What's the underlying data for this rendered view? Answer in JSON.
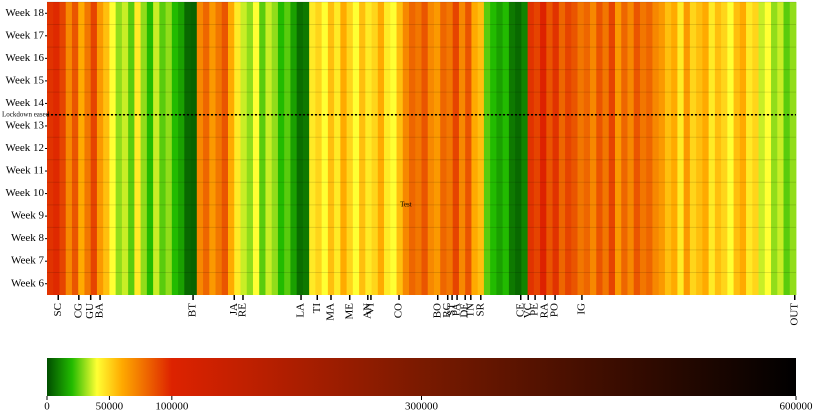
{
  "chart_data": {
    "type": "heatmap",
    "rows": [
      "Week 6",
      "Week 7",
      "Week 8",
      "Week 9",
      "Week 10",
      "Week 11",
      "Week 12",
      "Week 13",
      "Week 14",
      "Week 15",
      "Week 16",
      "Week 17",
      "Week 18"
    ],
    "values": [
      95000,
      98000,
      90000,
      70000,
      85000,
      60000,
      75000,
      90000,
      65000,
      55000,
      40000,
      30000,
      35000,
      25000,
      45000,
      30000,
      20000,
      35000,
      25000,
      30000,
      20000,
      15000,
      5000,
      4000,
      70000,
      80000,
      65000,
      75000,
      85000,
      60000,
      45000,
      35000,
      30000,
      40000,
      25000,
      35000,
      30000,
      20000,
      25000,
      15000,
      6000,
      8000,
      45000,
      50000,
      40000,
      55000,
      45000,
      60000,
      50000,
      40000,
      55000,
      45000,
      50000,
      60000,
      45000,
      40000,
      55000,
      70000,
      80000,
      75000,
      85000,
      70000,
      65000,
      80000,
      75000,
      90000,
      70000,
      85000,
      60000,
      55000,
      25000,
      20000,
      15000,
      20000,
      8000,
      5000,
      10000,
      95000,
      90000,
      100000,
      85000,
      95000,
      80000,
      90000,
      85000,
      75000,
      80000,
      70000,
      85000,
      75000,
      90000,
      65000,
      80000,
      70000,
      85000,
      75000,
      80000,
      70000,
      65000,
      55000,
      60000,
      45000,
      65000,
      50000,
      55000,
      60000,
      45000,
      55000,
      50000,
      40000,
      55000,
      60000,
      45000,
      50000,
      35000,
      40000,
      30000,
      35000,
      25000,
      30000
    ],
    "xlim": [
      0,
      120
    ],
    "xticks": [
      {
        "value": 1.8,
        "label": "SC"
      },
      {
        "value": 5.1,
        "label": "CG"
      },
      {
        "value": 7.0,
        "label": "GU"
      },
      {
        "value": 8.5,
        "label": "BA"
      },
      {
        "value": 23.4,
        "label": "BT"
      },
      {
        "value": 30.0,
        "label": "JA"
      },
      {
        "value": 31.4,
        "label": "RE"
      },
      {
        "value": 40.7,
        "label": "LA"
      },
      {
        "value": 43.3,
        "label": "TI"
      },
      {
        "value": 45.5,
        "label": "MA"
      },
      {
        "value": 48.5,
        "label": "ME"
      },
      {
        "value": 51.4,
        "label": "AN"
      },
      {
        "value": 51.9,
        "label": "VI"
      },
      {
        "value": 56.4,
        "label": "CO"
      },
      {
        "value": 62.6,
        "label": "BO"
      },
      {
        "value": 64.2,
        "label": "RC"
      },
      {
        "value": 64.9,
        "label": "ST"
      },
      {
        "value": 65.7,
        "label": "PA"
      },
      {
        "value": 67.0,
        "label": "DE"
      },
      {
        "value": 67.9,
        "label": "TN"
      },
      {
        "value": 69.5,
        "label": "SR"
      },
      {
        "value": 75.9,
        "label": "CE"
      },
      {
        "value": 77.1,
        "label": "VC"
      },
      {
        "value": 78.2,
        "label": "PE"
      },
      {
        "value": 79.8,
        "label": "RA"
      },
      {
        "value": 81.4,
        "label": "PO"
      },
      {
        "value": 85.7,
        "label": "IG"
      },
      {
        "value": 119.8,
        "label": "OUT"
      }
    ],
    "annotations": [
      {
        "text": "Lockdown eased",
        "y": 7.5,
        "line": true
      },
      {
        "text": "Test",
        "x": 57.5,
        "y": 3.5
      }
    ],
    "colorscale": [
      [
        0,
        "#004d00"
      ],
      [
        20000,
        "#22bb00"
      ],
      [
        40000,
        "#ffff33"
      ],
      [
        60000,
        "#ffaa00"
      ],
      [
        100000,
        "#dd2200"
      ],
      [
        300000,
        "#7a1a00"
      ],
      [
        600000,
        "#000000"
      ]
    ],
    "colorbar_lim": [
      0,
      600000
    ],
    "colorbar_ticks": [
      0,
      50000,
      100000,
      300000,
      600000
    ],
    "grid": true
  }
}
